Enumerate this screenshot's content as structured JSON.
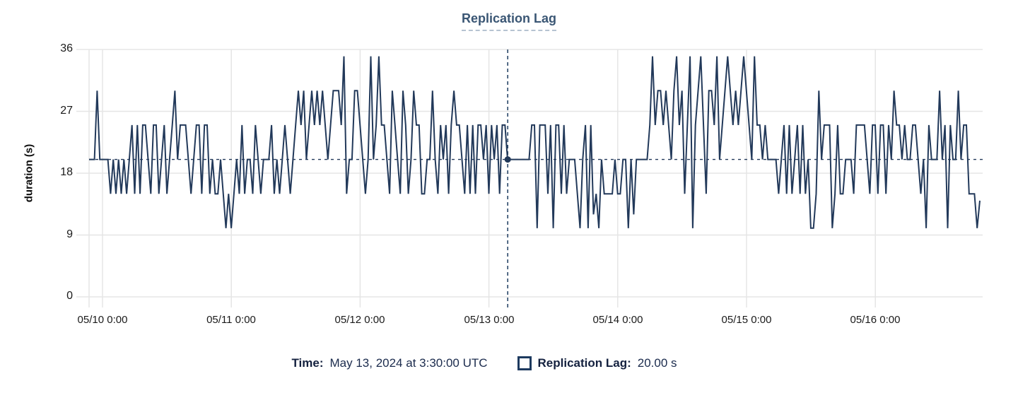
{
  "title": "Replication Lag",
  "y_axis": {
    "label": "duration (s)",
    "ticks": [
      "36",
      "27",
      "18",
      "9",
      "0"
    ]
  },
  "x_axis": {
    "ticks": [
      "05/10 0:00",
      "05/11 0:00",
      "05/12 0:00",
      "05/13 0:00",
      "05/14 0:00",
      "05/15 0:00",
      "05/16 0:00"
    ]
  },
  "tooltip": {
    "time_label": "Time:",
    "time_value": "May 13, 2024 at 3:30:00 UTC",
    "series_label": "Replication Lag:",
    "series_value": "20.00 s"
  },
  "colors": {
    "line": "#22395a",
    "grid": "#e5e5e5",
    "title": "#3a5674",
    "reference": "#22395a",
    "crosshair": "#2a4668",
    "marker": "#22395a"
  },
  "chart_data": {
    "type": "line",
    "title": "Replication Lag",
    "ylabel": "duration (s)",
    "unit": "s",
    "ylim": [
      0,
      36
    ],
    "y_ticks": [
      0,
      9,
      18,
      27,
      36
    ],
    "x_tick_labels": [
      "05/10 0:00",
      "05/11 0:00",
      "05/12 0:00",
      "05/13 0:00",
      "05/14 0:00",
      "05/15 0:00",
      "05/16 0:00"
    ],
    "x_range": "2024-05-09 21:30 UTC to 2024-05-16 20:00 UTC",
    "interval_minutes": 30,
    "grid": true,
    "legend_position": "bottom",
    "reference_line_y": 20,
    "crosshair": {
      "time": "May 13, 2024 at 3:30:00 UTC",
      "value": 20.0,
      "fraction": 0.4685
    },
    "values": [
      20,
      20,
      20,
      30,
      20,
      20,
      20,
      20,
      15,
      20,
      15,
      20,
      15,
      20,
      15,
      20,
      25,
      15,
      25,
      15,
      25,
      25,
      20,
      15,
      25,
      25,
      15,
      20,
      25,
      15,
      20,
      25,
      30,
      20,
      25,
      25,
      25,
      20,
      15,
      20,
      25,
      25,
      15,
      25,
      25,
      15,
      20,
      15,
      15,
      20,
      15,
      10,
      15,
      10,
      15,
      20,
      15,
      25,
      15,
      20,
      20,
      15,
      25,
      20,
      15,
      20,
      20,
      20,
      25,
      15,
      20,
      15,
      20,
      25,
      20,
      15,
      20,
      25,
      30,
      25,
      30,
      20,
      25,
      30,
      25,
      30,
      25,
      30,
      25,
      20,
      25,
      30,
      30,
      30,
      25,
      35,
      15,
      20,
      20,
      30,
      30,
      25,
      20,
      15,
      20,
      35,
      20,
      25,
      35,
      25,
      25,
      20,
      15,
      30,
      25,
      20,
      15,
      30,
      25,
      15,
      20,
      30,
      25,
      25,
      15,
      15,
      20,
      20,
      30,
      20,
      15,
      25,
      20,
      25,
      15,
      25,
      30,
      25,
      25,
      20,
      15,
      25,
      15,
      25,
      15,
      25,
      25,
      20,
      25,
      15,
      25,
      20,
      25,
      15,
      25,
      25,
      20,
      20,
      20,
      20,
      20,
      20,
      20,
      20,
      20,
      25,
      25,
      10,
      25,
      25,
      25,
      15,
      25,
      10,
      25,
      25,
      15,
      25,
      15,
      20,
      20,
      20,
      15,
      10,
      20,
      25,
      10,
      25,
      12,
      15,
      10,
      20,
      15,
      15,
      15,
      15,
      20,
      15,
      15,
      20,
      20,
      10,
      20,
      12,
      20,
      20,
      20,
      20,
      20,
      25,
      35,
      25,
      30,
      30,
      25,
      30,
      25,
      20,
      30,
      35,
      25,
      30,
      15,
      25,
      35,
      10,
      25,
      30,
      35,
      25,
      15,
      30,
      30,
      25,
      35,
      20,
      25,
      30,
      35,
      30,
      25,
      30,
      25,
      30,
      35,
      30,
      25,
      20,
      35,
      25,
      25,
      20,
      25,
      20,
      20,
      20,
      20,
      15,
      20,
      25,
      15,
      25,
      15,
      20,
      25,
      15,
      25,
      15,
      20,
      10,
      10,
      15,
      30,
      20,
      25,
      25,
      25,
      10,
      15,
      25,
      15,
      15,
      20,
      20,
      20,
      15,
      25,
      25,
      25,
      25,
      20,
      15,
      25,
      25,
      15,
      25,
      25,
      15,
      25,
      20,
      30,
      25,
      25,
      20,
      25,
      20,
      20,
      25,
      25,
      20,
      15,
      20,
      10,
      25,
      20,
      20,
      20,
      30,
      20,
      25,
      10,
      25,
      20,
      20,
      30,
      20,
      25,
      25,
      15,
      15,
      15,
      10,
      14
    ]
  }
}
